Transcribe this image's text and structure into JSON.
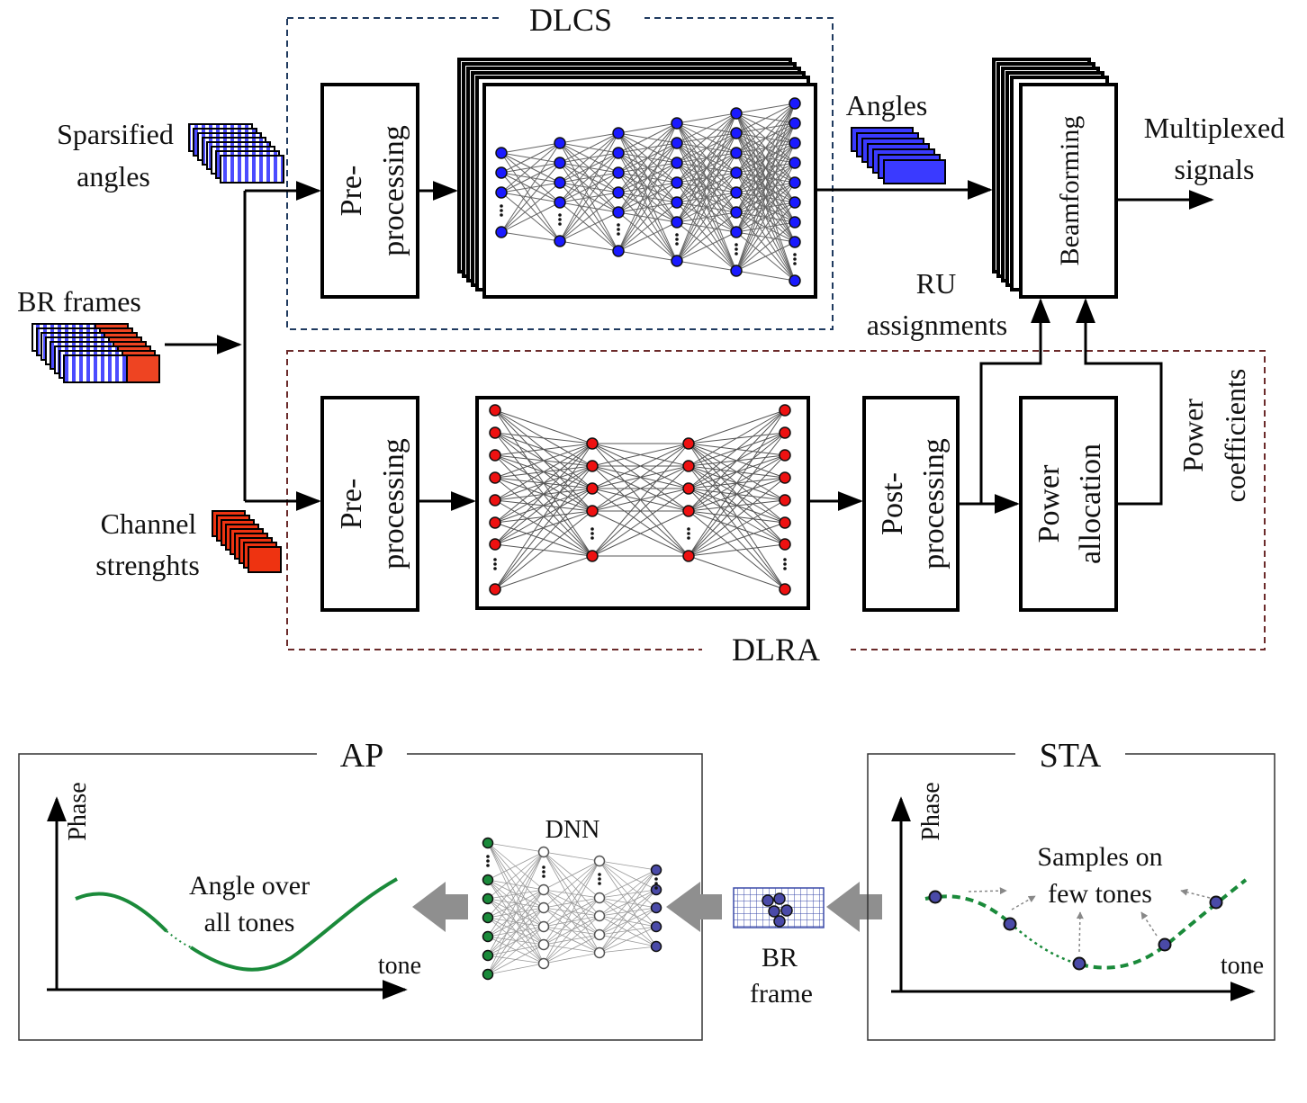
{
  "top": {
    "dlcs_label": "DLCS",
    "dlra_label": "DLRA",
    "inputs": {
      "sparsified": [
        "Sparsified",
        "angles"
      ],
      "br_frames": "BR frames",
      "channel": [
        "Channel",
        "strenghts"
      ]
    },
    "pre_processing": [
      "Pre-",
      "processing"
    ],
    "post_processing": [
      "Post-",
      "processing"
    ],
    "angles": "Angles",
    "beamforming": "Beamforming",
    "multiplexed": [
      "Multiplexed",
      "signals"
    ],
    "ru_assignments": [
      "RU",
      "assignments"
    ],
    "power_allocation": [
      "Power",
      "allocation"
    ],
    "power_coefficients": [
      "Power",
      "coefficients"
    ]
  },
  "bottom": {
    "ap_title": "AP",
    "sta_title": "STA",
    "phase": "Phase",
    "tone": "tone",
    "angle_over": [
      "Angle over",
      "all tones"
    ],
    "dnn": "DNN",
    "br_frame": [
      "BR",
      "frame"
    ],
    "samples": [
      "Samples on",
      "few tones"
    ]
  },
  "colors": {
    "dlcs_border": "#1f3a5f",
    "dlra_border": "#6b2a2a",
    "blue_node": "#1a1aff",
    "red_node": "#ee1111",
    "green_curve": "#1a8a3a",
    "gray_arrow": "#8f8f8f",
    "purple_point": "#4a4aa8"
  }
}
